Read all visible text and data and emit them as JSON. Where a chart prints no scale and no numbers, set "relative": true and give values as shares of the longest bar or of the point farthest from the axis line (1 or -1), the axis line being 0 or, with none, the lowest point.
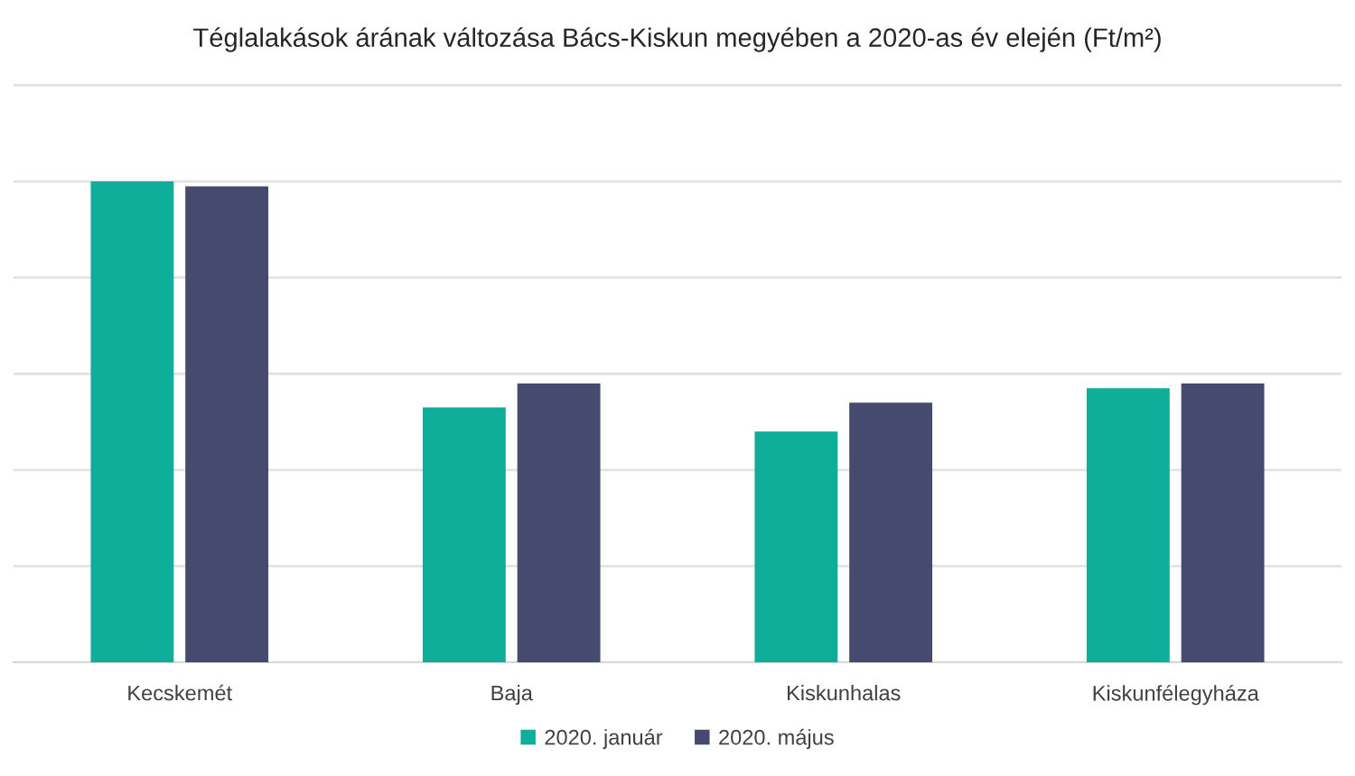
{
  "chart_data": {
    "type": "bar",
    "title": "Téglalakások árának változása Bács-Kiskun megyében a 2020-as év elején (Ft/m²)",
    "categories": [
      "Kecskemét",
      "Baja",
      "Kiskunhalas",
      "Kiskunfélegyháza"
    ],
    "series": [
      {
        "name": "2020. január",
        "color": "#0fae9a",
        "values": [
          1,
          0.53,
          0.48,
          0.57
        ]
      },
      {
        "name": "2020. május",
        "color": "#464a6e",
        "values": [
          0.99,
          0.58,
          0.54,
          0.58
        ]
      }
    ],
    "relative": true,
    "grid": "y",
    "legend": "bottom",
    "tick_labels": "x"
  }
}
